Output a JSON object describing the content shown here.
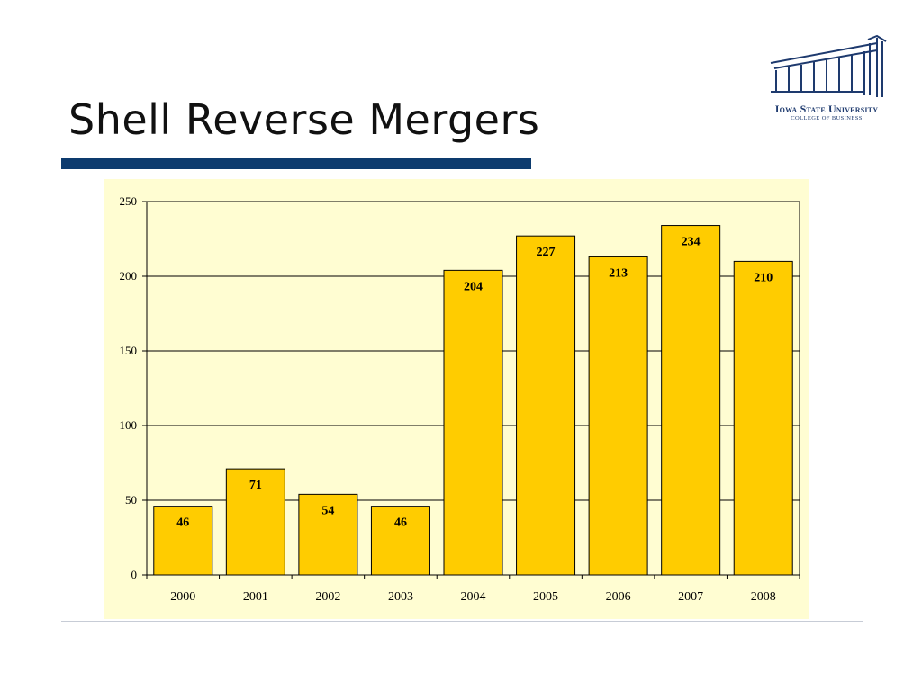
{
  "slide": {
    "title": "Shell Reverse Mergers"
  },
  "logo": {
    "name": "Iowa State University",
    "subtitle": "COLLEGE OF BUSINESS",
    "icon": "building-columns-icon",
    "color": "#1e3a6e"
  },
  "colors": {
    "title_bar": "#0d3b6e",
    "chart_background": "#fffdd2",
    "bar_fill": "#ffcc00",
    "bar_stroke": "#000000"
  },
  "chart_data": {
    "type": "bar",
    "title": "",
    "xlabel": "",
    "ylabel": "",
    "categories": [
      "2000",
      "2001",
      "2002",
      "2003",
      "2004",
      "2005",
      "2006",
      "2007",
      "2008"
    ],
    "values": [
      46,
      71,
      54,
      46,
      204,
      227,
      213,
      234,
      210
    ],
    "data_labels": [
      "46",
      "71",
      "54",
      "46",
      "204",
      "227",
      "213",
      "234",
      "210"
    ],
    "ylim": [
      0,
      250
    ],
    "yticks": [
      "0",
      "50",
      "100",
      "150",
      "200",
      "250"
    ],
    "grid": true,
    "legend": "none"
  }
}
